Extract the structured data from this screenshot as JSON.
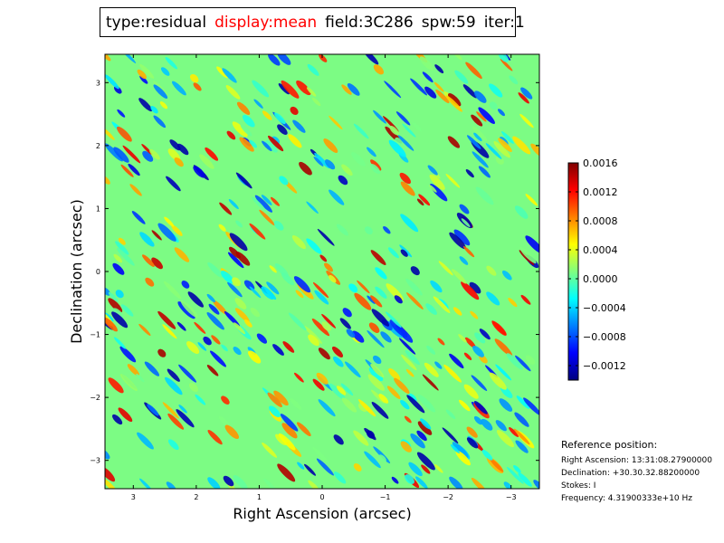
{
  "title": {
    "type": "type:residual",
    "display": "display:mean",
    "field": "field:3C286",
    "spw": "spw:59",
    "iter": "iter:1",
    "display_color": "#ff0000"
  },
  "chart_data": {
    "type": "heatmap",
    "xlabel": "Right Ascension (arcsec)",
    "ylabel": "Declination (arcsec)",
    "xlim": [
      3.45,
      -3.45
    ],
    "ylim": [
      -3.45,
      3.45
    ],
    "x_ticks": [
      3,
      2,
      1,
      0,
      -1,
      -2,
      -3
    ],
    "x_tick_labels": [
      "3",
      "2",
      "1",
      "0",
      "−1",
      "−2",
      "−3"
    ],
    "y_ticks": [
      3,
      2,
      1,
      0,
      -1,
      -2,
      -3
    ],
    "y_tick_labels": [
      "3",
      "2",
      "1",
      "0",
      "−1",
      "−2",
      "−3"
    ],
    "colormap": "jet",
    "colorbar": {
      "range": [
        -0.0014,
        0.0016
      ],
      "ticks": [
        0.0016,
        0.0012,
        0.0008,
        0.0004,
        0.0,
        -0.0004,
        -0.0008,
        -0.0012
      ],
      "tick_labels": [
        "0.0016",
        "0.0012",
        "0.0008",
        "0.0004",
        "0.0000",
        "−0.0004",
        "−0.0008",
        "−0.0012"
      ]
    },
    "pattern": "diagonal striped residual noise"
  },
  "reference": {
    "title": "Reference position:",
    "ra": "Right Ascension: 13:31:08.27900000",
    "dec": "Declination: +30.30.32.88200000",
    "stokes": "Stokes: I",
    "freq": "Frequency: 4.31900333e+10 Hz"
  }
}
